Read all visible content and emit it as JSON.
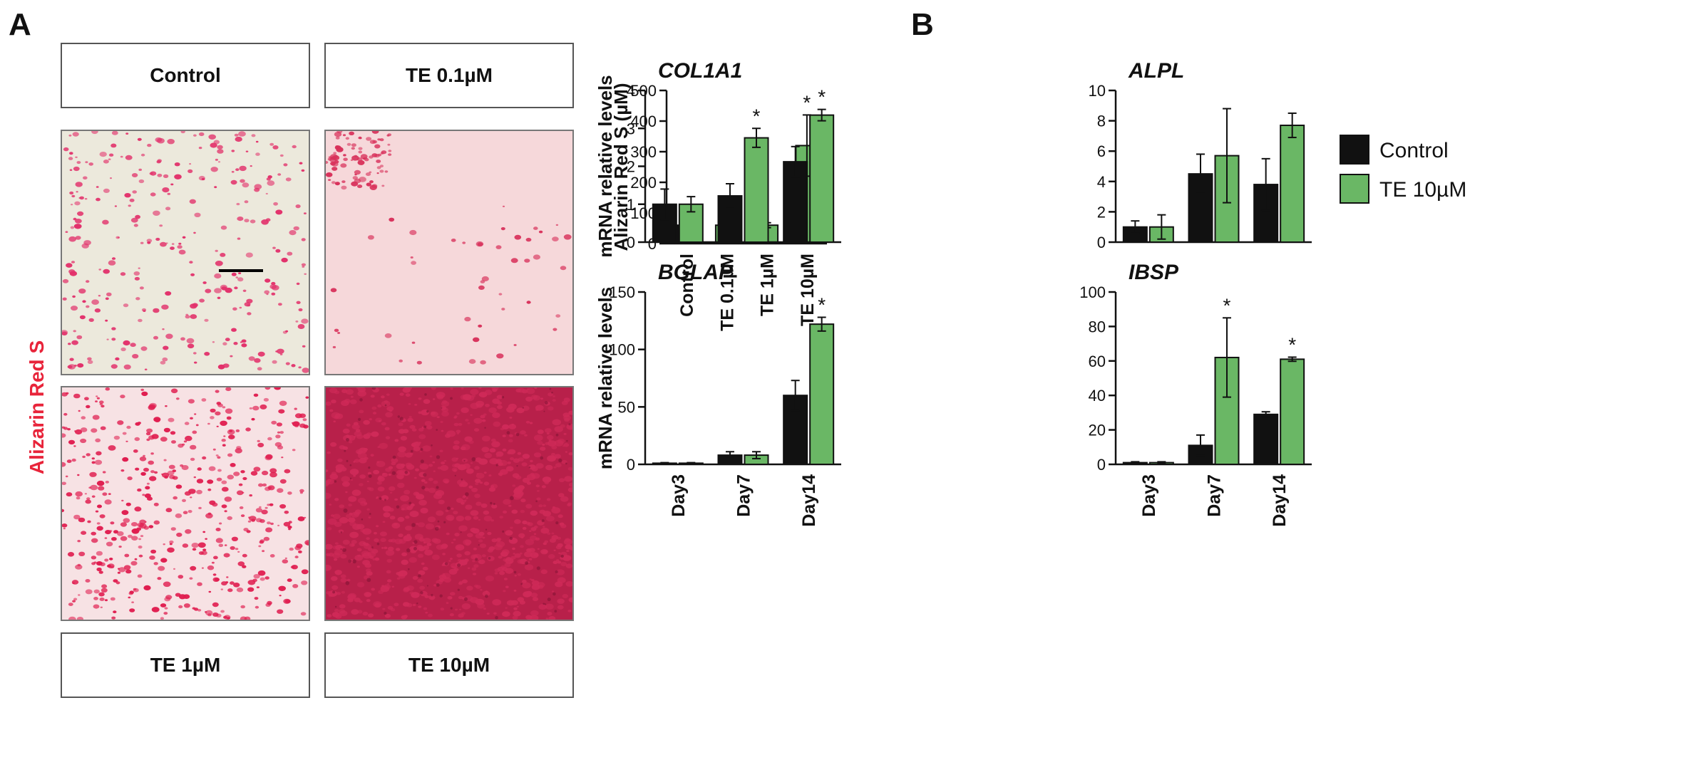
{
  "panels": {
    "a": "A",
    "b": "B"
  },
  "images": {
    "side_label": "Alizarin Red S",
    "tiles": [
      {
        "label": "Control",
        "density": 0.28,
        "bg": "#ece9dc",
        "stain": "#e2306a"
      },
      {
        "label": "TE 0.1µM",
        "density": 0.08,
        "bg": "#f6d8da",
        "stain": "#d8305a"
      },
      {
        "label": "TE 1µM",
        "density": 0.5,
        "bg": "#f7e2e4",
        "stain": "#e01e50"
      },
      {
        "label": "TE 10µM",
        "density": 0.95,
        "bg": "#b8204a",
        "stain": "#cf2a58"
      }
    ]
  },
  "colors": {
    "control": "#111111",
    "te": "#6ab765",
    "star": "#111111"
  },
  "legend": {
    "items": [
      "Control",
      "TE 10µM"
    ]
  },
  "chart_data": [
    {
      "id": "alizarin",
      "type": "bar",
      "title": "",
      "ylabel": "Alizarin Red S (µM)",
      "ylim": [
        0,
        500
      ],
      "yticks": [
        0,
        100,
        200,
        300,
        400,
        500
      ],
      "categories": [
        "Control",
        "TE 0.1µM",
        "TE 1µM",
        "TE 10µM"
      ],
      "values": [
        60,
        60,
        60,
        320
      ],
      "errors": [
        5,
        4,
        8,
        100
      ],
      "colors": [
        "control",
        "te",
        "te",
        "te"
      ],
      "significant": [
        false,
        false,
        false,
        true
      ],
      "significance_marker": "*"
    },
    {
      "id": "col1a1",
      "type": "bar",
      "title": "COL1A1",
      "ylabel": "mRNA relative levels",
      "ylim": [
        0,
        4
      ],
      "yticks": [
        0,
        1,
        2,
        3,
        4
      ],
      "categories": [
        "Day3",
        "Day7",
        "Day14"
      ],
      "series": [
        {
          "name": "Control",
          "values": [
            1.0,
            1.22,
            2.12
          ],
          "errors": [
            0.4,
            0.32,
            0.4
          ],
          "significant": [
            false,
            false,
            false
          ]
        },
        {
          "name": "TE 10µM",
          "values": [
            1.0,
            2.75,
            3.35
          ],
          "errors": [
            0.2,
            0.25,
            0.15
          ],
          "significant": [
            false,
            true,
            true
          ]
        }
      ],
      "significance_marker": "*"
    },
    {
      "id": "alpl",
      "type": "bar",
      "title": "ALPL",
      "ylabel": "",
      "ylim": [
        0,
        10
      ],
      "yticks": [
        0,
        2,
        4,
        6,
        8,
        10
      ],
      "categories": [
        "Day3",
        "Day7",
        "Day14"
      ],
      "series": [
        {
          "name": "Control",
          "values": [
            1.0,
            4.5,
            3.8
          ],
          "errors": [
            0.4,
            1.3,
            1.7
          ],
          "significant": [
            false,
            false,
            false
          ]
        },
        {
          "name": "TE 10µM",
          "values": [
            1.0,
            5.7,
            7.7
          ],
          "errors": [
            0.8,
            3.1,
            0.8
          ],
          "significant": [
            false,
            false,
            false
          ]
        }
      ],
      "significance_marker": "*"
    },
    {
      "id": "bglap",
      "type": "bar",
      "title": "BGLAP",
      "ylabel": "mRNA relative levels",
      "ylim": [
        0,
        150
      ],
      "yticks": [
        0,
        50,
        100,
        150
      ],
      "categories": [
        "Day3",
        "Day7",
        "Day14"
      ],
      "series": [
        {
          "name": "Control",
          "values": [
            1,
            8,
            60
          ],
          "errors": [
            0.5,
            3,
            13
          ],
          "significant": [
            false,
            false,
            false
          ]
        },
        {
          "name": "TE 10µM",
          "values": [
            1,
            8,
            122
          ],
          "errors": [
            0.5,
            3,
            6
          ],
          "significant": [
            false,
            false,
            true
          ]
        }
      ],
      "significance_marker": "*"
    },
    {
      "id": "ibsp",
      "type": "bar",
      "title": "IBSP",
      "ylabel": "",
      "ylim": [
        0,
        100
      ],
      "yticks": [
        0,
        20,
        40,
        60,
        80,
        100
      ],
      "categories": [
        "Day3",
        "Day7",
        "Day14"
      ],
      "series": [
        {
          "name": "Control",
          "values": [
            1,
            11,
            29
          ],
          "errors": [
            0.5,
            6,
            1.5
          ],
          "significant": [
            false,
            false,
            false
          ]
        },
        {
          "name": "TE 10µM",
          "values": [
            1,
            62,
            61
          ],
          "errors": [
            0.5,
            23,
            1.2
          ],
          "significant": [
            false,
            true,
            true
          ]
        }
      ],
      "significance_marker": "*"
    }
  ]
}
